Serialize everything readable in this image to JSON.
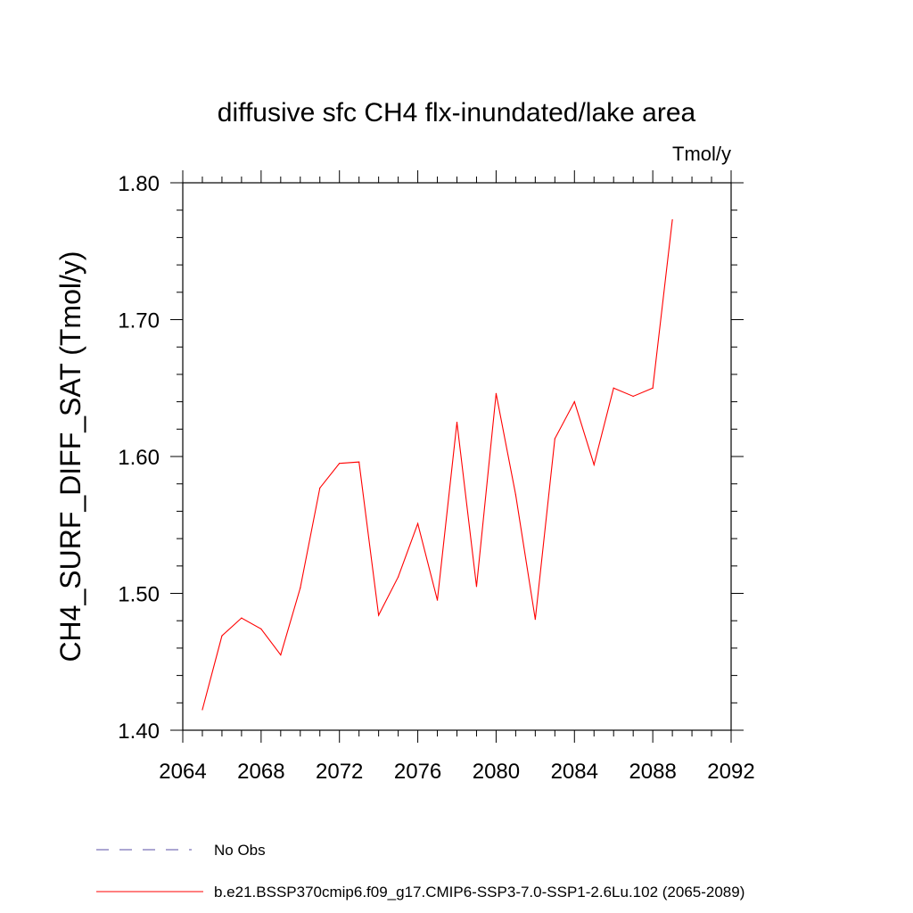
{
  "chart_data": {
    "type": "line",
    "title": "diffusive sfc CH4 flx-inundated/lake area",
    "units": "Tmol/y",
    "ylabel": "CH4_SURF_DIFF_SAT  (Tmol/y)",
    "xlabel": "",
    "xlim": [
      2064,
      2092
    ],
    "ylim": [
      1.4,
      1.8
    ],
    "xticks": [
      "2064",
      "2068",
      "2072",
      "2076",
      "2080",
      "2084",
      "2088",
      "2092"
    ],
    "yticks": [
      "1.40",
      "1.50",
      "1.60",
      "1.70",
      "1.80"
    ],
    "grid": false,
    "legend_position": "bottom",
    "series": [
      {
        "name": "b.e21.BSSP370cmip6.f09_g17.CMIP6-SSP3-7.0-SSP1-2.6Lu.102 (2065-2089)",
        "color": "#ff0000",
        "x": [
          2065,
          2066,
          2067,
          2068,
          2069,
          2070,
          2071,
          2072,
          2073,
          2074,
          2075,
          2076,
          2077,
          2078,
          2079,
          2080,
          2081,
          2082,
          2083,
          2084,
          2085,
          2086,
          2087,
          2088,
          2089
        ],
        "values": [
          1.415,
          1.469,
          1.482,
          1.474,
          1.455,
          1.504,
          1.577,
          1.595,
          1.596,
          1.484,
          1.512,
          1.551,
          1.495,
          1.625,
          1.505,
          1.646,
          1.572,
          1.481,
          1.613,
          1.64,
          1.594,
          1.65,
          1.644,
          1.65,
          1.773
        ]
      }
    ],
    "legend": [
      {
        "label": "No Obs",
        "color": "#5a4fa6",
        "dashed": true
      },
      {
        "label": "b.e21.BSSP370cmip6.f09_g17.CMIP6-SSP3-7.0-SSP1-2.6Lu.102 (2065-2089)",
        "color": "#ff0000",
        "dashed": false
      }
    ]
  }
}
